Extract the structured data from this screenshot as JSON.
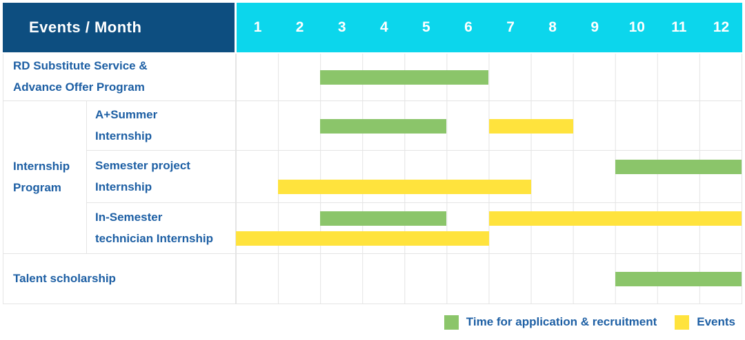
{
  "header": {
    "title": "Events / Month",
    "months": [
      "1",
      "2",
      "3",
      "4",
      "5",
      "6",
      "7",
      "8",
      "9",
      "10",
      "11",
      "12"
    ]
  },
  "colors": {
    "header_bg": "#0d4e80",
    "months_bg": "#0cd6ec",
    "label_text": "#1d5fa4",
    "green": "#8bc56a",
    "yellow": "#ffe33d",
    "grid_line": "#e4e4e4"
  },
  "groups": {
    "internship": {
      "label_lines": [
        "Internship",
        "Program"
      ]
    }
  },
  "rows": [
    {
      "id": "rd-substitute",
      "label_lines": [
        "RD Substitute Service &",
        "Advance Offer Program"
      ],
      "full_width_label": true,
      "bars": [
        {
          "color": "green",
          "start": 3,
          "end": 6,
          "lane": "middle"
        }
      ]
    },
    {
      "id": "a-summer-internship",
      "group": "internship",
      "label_lines": [
        "A+Summer",
        "Internship"
      ],
      "bars": [
        {
          "color": "green",
          "start": 3,
          "end": 5,
          "lane": "middle"
        },
        {
          "color": "yellow",
          "start": 7,
          "end": 8,
          "lane": "middle"
        }
      ]
    },
    {
      "id": "semester-project-internship",
      "group": "internship",
      "label_lines": [
        "Semester project",
        "Internship"
      ],
      "bars": [
        {
          "color": "green",
          "start": 10,
          "end": 12,
          "lane": "top"
        },
        {
          "color": "yellow",
          "start": 2,
          "end": 7,
          "lane": "bottom"
        }
      ]
    },
    {
      "id": "in-semester-technician-internship",
      "group": "internship",
      "label_lines": [
        "In-Semester",
        "technician Internship"
      ],
      "bars": [
        {
          "color": "green",
          "start": 3,
          "end": 5,
          "lane": "top"
        },
        {
          "color": "yellow",
          "start": 7,
          "end": 12,
          "lane": "top"
        },
        {
          "color": "yellow",
          "start": 1,
          "end": 6,
          "lane": "bottom"
        }
      ]
    },
    {
      "id": "talent-scholarship",
      "label_lines": [
        "Talent scholarship"
      ],
      "full_width_label": true,
      "bars": [
        {
          "color": "green",
          "start": 10,
          "end": 12,
          "lane": "middle"
        }
      ]
    }
  ],
  "legend": {
    "items": [
      {
        "color": "green",
        "label": "Time for application & recruitment"
      },
      {
        "color": "yellow",
        "label": "Events"
      }
    ]
  },
  "chart_data": {
    "type": "gantt",
    "title": "Events / Month",
    "x_axis": {
      "label": "Month",
      "ticks": [
        1,
        2,
        3,
        4,
        5,
        6,
        7,
        8,
        9,
        10,
        11,
        12
      ],
      "range": [
        1,
        12
      ]
    },
    "grid": true,
    "legend_position": "bottom-right",
    "series_colors": {
      "Time for application & recruitment": "#8bc56a",
      "Events": "#ffe33d"
    },
    "tasks": [
      {
        "row": "RD Substitute Service & Advance Offer Program",
        "group": null,
        "bars": [
          {
            "series": "Time for application & recruitment",
            "start_month": 3,
            "end_month": 6
          }
        ]
      },
      {
        "row": "A+Summer Internship",
        "group": "Internship Program",
        "bars": [
          {
            "series": "Time for application & recruitment",
            "start_month": 3,
            "end_month": 5
          },
          {
            "series": "Events",
            "start_month": 7,
            "end_month": 8
          }
        ]
      },
      {
        "row": "Semester project Internship",
        "group": "Internship Program",
        "bars": [
          {
            "series": "Time for application & recruitment",
            "start_month": 10,
            "end_month": 12
          },
          {
            "series": "Events",
            "start_month": 2,
            "end_month": 7
          }
        ]
      },
      {
        "row": "In-Semester technician Internship",
        "group": "Internship Program",
        "bars": [
          {
            "series": "Time for application & recruitment",
            "start_month": 3,
            "end_month": 5
          },
          {
            "series": "Events",
            "start_month": 7,
            "end_month": 12
          },
          {
            "series": "Events",
            "start_month": 1,
            "end_month": 6
          }
        ]
      },
      {
        "row": "Talent scholarship",
        "group": null,
        "bars": [
          {
            "series": "Time for application & recruitment",
            "start_month": 10,
            "end_month": 12
          }
        ]
      }
    ]
  }
}
